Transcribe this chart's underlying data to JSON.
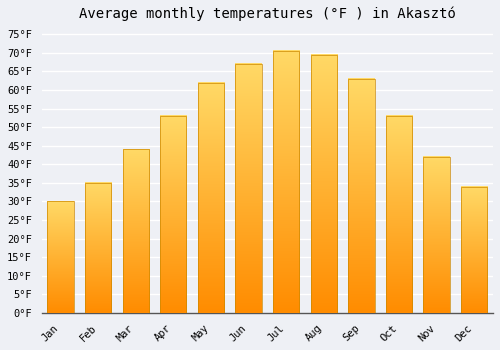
{
  "title": "Average monthly temperatures (°F ) in Akasztó",
  "months": [
    "Jan",
    "Feb",
    "Mar",
    "Apr",
    "May",
    "Jun",
    "Jul",
    "Aug",
    "Sep",
    "Oct",
    "Nov",
    "Dec"
  ],
  "values": [
    30,
    35,
    44,
    53,
    62,
    67,
    70.5,
    69.5,
    63,
    53,
    42,
    34
  ],
  "bar_color": "#FFA500",
  "bar_color_top": "#FFD966",
  "ylim": [
    0,
    77
  ],
  "yticks": [
    0,
    5,
    10,
    15,
    20,
    25,
    30,
    35,
    40,
    45,
    50,
    55,
    60,
    65,
    70,
    75
  ],
  "background_color": "#eef0f5",
  "plot_bg_color": "#eef0f5",
  "grid_color": "#ffffff",
  "title_fontsize": 10,
  "tick_fontsize": 7.5,
  "font_family": "monospace"
}
